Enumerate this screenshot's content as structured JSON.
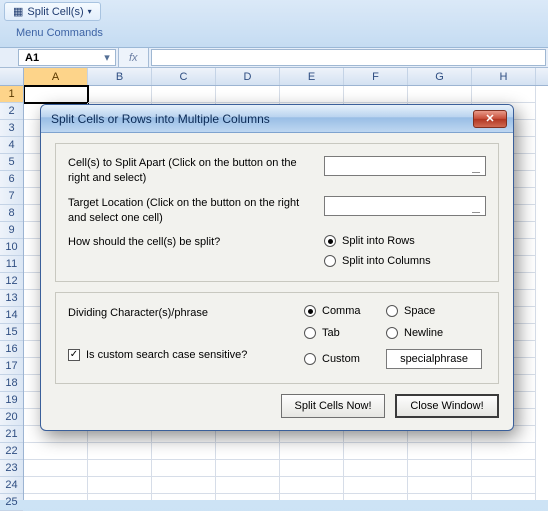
{
  "ribbon": {
    "split_button_label": "Split Cell(s)",
    "group_label": "Menu Commands"
  },
  "formula_bar": {
    "name_box_value": "A1",
    "fx_label": "fx"
  },
  "grid": {
    "columns": [
      "A",
      "B",
      "C",
      "D",
      "E",
      "F",
      "G",
      "H"
    ],
    "row_count": 25,
    "active_col": "A",
    "active_row": 1
  },
  "dialog": {
    "title": "Split Cells or Rows into Multiple Columns",
    "group1": {
      "cells_to_split_label": "Cell(s) to Split Apart (Click on the button on the right and select)",
      "target_location_label": "Target Location (Click on the button on the right and select one cell)",
      "how_split_label": "How should the cell(s) be split?",
      "option_rows": "Split into Rows",
      "option_cols": "Split into Columns",
      "selected_split": "rows"
    },
    "group2": {
      "dividing_label": "Dividing Character(s)/phrase",
      "case_sensitive_label": "Is custom search case sensitive?",
      "case_sensitive_checked": true,
      "options": {
        "comma": "Comma",
        "space": "Space",
        "tab": "Tab",
        "newline": "Newline",
        "custom": "Custom"
      },
      "selected_divider": "comma",
      "custom_text": "specialphrase"
    },
    "buttons": {
      "split_now": "Split Cells Now!",
      "close": "Close Window!"
    }
  },
  "colors": {
    "titlebar_text": "#0b2a55",
    "grid_border": "#d6dde8",
    "active_header_bg": "#fdd48a"
  }
}
